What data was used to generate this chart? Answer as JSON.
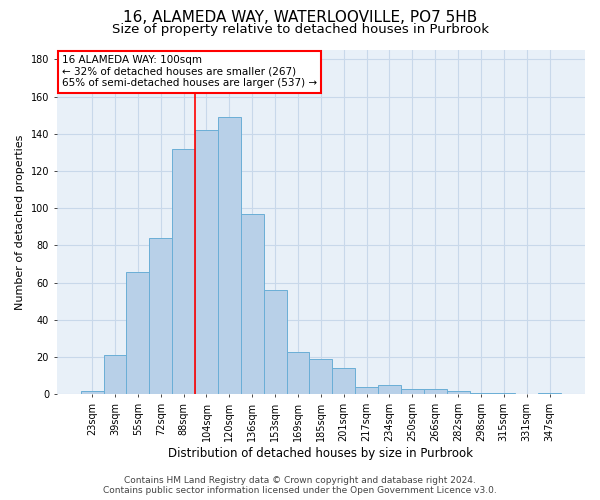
{
  "title_line1": "16, ALAMEDA WAY, WATERLOOVILLE, PO7 5HB",
  "title_line2": "Size of property relative to detached houses in Purbrook",
  "xlabel": "Distribution of detached houses by size in Purbrook",
  "ylabel": "Number of detached properties",
  "bar_labels": [
    "23sqm",
    "39sqm",
    "55sqm",
    "72sqm",
    "88sqm",
    "104sqm",
    "120sqm",
    "136sqm",
    "153sqm",
    "169sqm",
    "185sqm",
    "201sqm",
    "217sqm",
    "234sqm",
    "250sqm",
    "266sqm",
    "282sqm",
    "298sqm",
    "315sqm",
    "331sqm",
    "347sqm"
  ],
  "bar_heights": [
    2,
    21,
    66,
    84,
    132,
    142,
    149,
    97,
    56,
    23,
    19,
    14,
    4,
    5,
    3,
    3,
    2,
    1,
    1,
    0,
    1
  ],
  "bar_color": "#b8d0e8",
  "bar_edge_color": "#6aaed6",
  "grid_color": "#c8d8ea",
  "background_color": "#e8f0f8",
  "vline_color": "red",
  "vline_pos": 4.5,
  "annotation_text_line1": "16 ALAMEDA WAY: 100sqm",
  "annotation_text_line2": "← 32% of detached houses are smaller (267)",
  "annotation_text_line3": "65% of semi-detached houses are larger (537) →",
  "annotation_box_color": "white",
  "annotation_box_edge_color": "red",
  "ylim": [
    0,
    185
  ],
  "yticks": [
    0,
    20,
    40,
    60,
    80,
    100,
    120,
    140,
    160,
    180
  ],
  "footer_line1": "Contains HM Land Registry data © Crown copyright and database right 2024.",
  "footer_line2": "Contains public sector information licensed under the Open Government Licence v3.0.",
  "title_fontsize": 11,
  "subtitle_fontsize": 9.5,
  "xlabel_fontsize": 8.5,
  "ylabel_fontsize": 8,
  "tick_fontsize": 7,
  "annotation_fontsize": 7.5,
  "footer_fontsize": 6.5
}
